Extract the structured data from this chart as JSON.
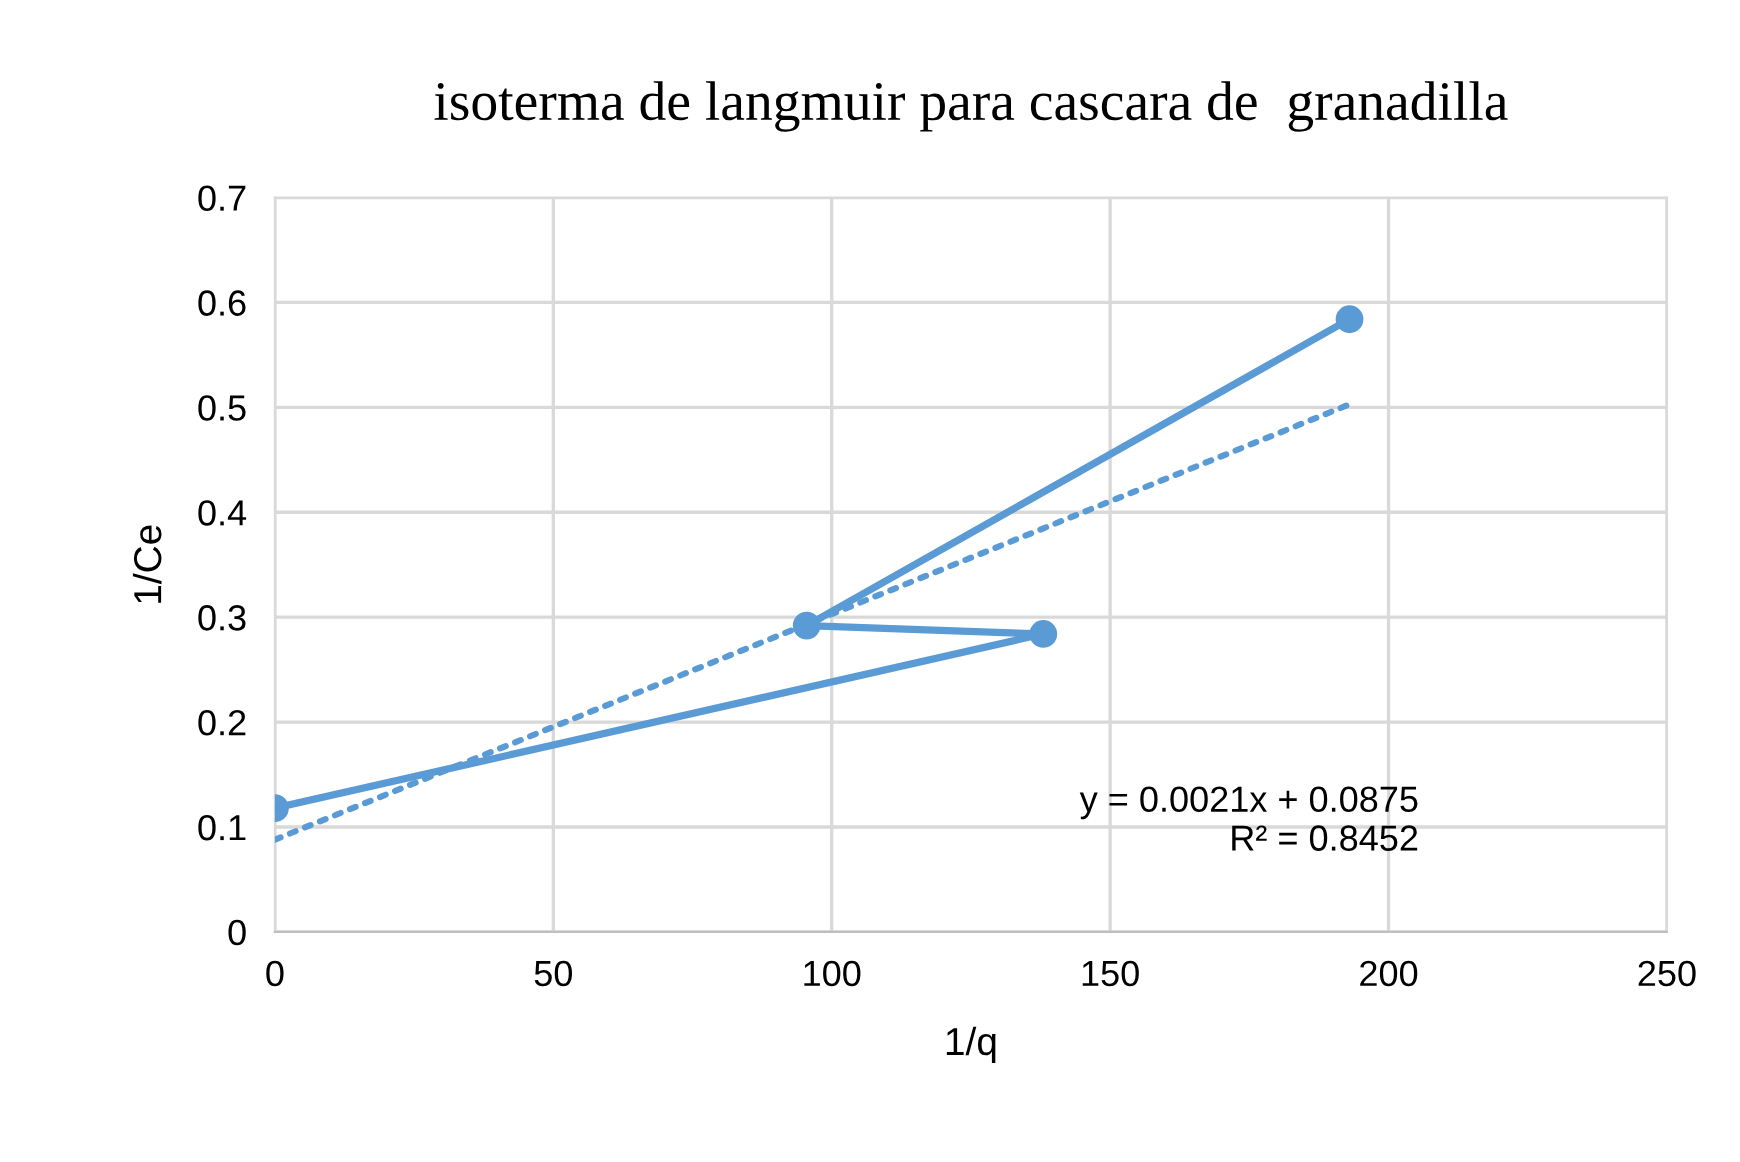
{
  "chart_data": {
    "type": "line",
    "title": "isoterma de langmuir para cascara de  granadilla",
    "xlabel": "1/q",
    "ylabel": "1/Ce",
    "series": [
      {
        "color": "#5b9bd5",
        "marker": "circle",
        "line_style": "solid",
        "x": [
          0,
          138,
          95.5,
          193
        ],
        "values": [
          0.118,
          0.284,
          0.292,
          0.584
        ]
      },
      {
        "color": "#5b9bd5",
        "marker": "none",
        "line_style": "dotted",
        "x": [
          0,
          194
        ],
        "values": [
          0.088,
          0.505
        ]
      }
    ],
    "annotations": [
      "y = 0.0021x + 0.0875\nR² = 0.8452"
    ],
    "xlim": [
      0,
      250
    ],
    "xticks": [
      0,
      50,
      100,
      150,
      200,
      250
    ],
    "ylim": [
      0,
      0.7
    ],
    "yticks": [
      0,
      0.1,
      0.2,
      0.3,
      0.4,
      0.5,
      0.6,
      0.7
    ],
    "grid": true
  }
}
